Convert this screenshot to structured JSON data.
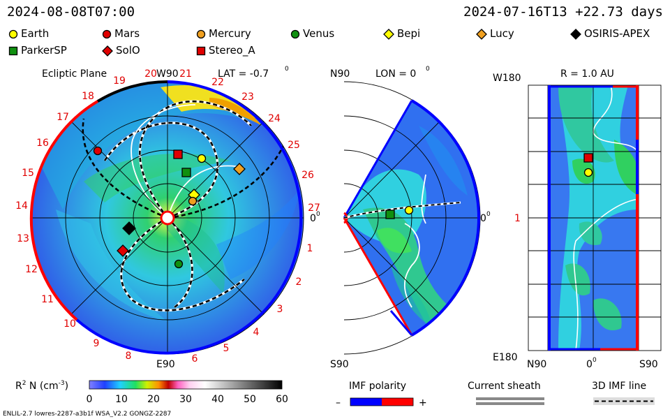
{
  "header": {
    "date": "2024-08-08T07:00",
    "run_info": "2024-07-16T13 +22.73 days"
  },
  "legend": [
    {
      "label": "Earth",
      "shape": "circle",
      "color": "#ffff00"
    },
    {
      "label": "Mars",
      "shape": "circle",
      "color": "#e00000"
    },
    {
      "label": "Mercury",
      "shape": "circle",
      "color": "#f0a020"
    },
    {
      "label": "Venus",
      "shape": "circle",
      "color": "#109010"
    },
    {
      "label": "Bepi",
      "shape": "diamond",
      "color": "#ffff00"
    },
    {
      "label": "Lucy",
      "shape": "diamond",
      "color": "#f0a020"
    },
    {
      "label": "OSIRIS-APEX",
      "shape": "diamond",
      "color": "#000000"
    },
    {
      "label": "ParkerSP",
      "shape": "square",
      "color": "#109010"
    },
    {
      "label": "SolO",
      "shape": "diamond",
      "color": "#e00000"
    },
    {
      "label": "Stereo_A",
      "shape": "square",
      "color": "#e00000"
    }
  ],
  "panels": {
    "ecliptic": {
      "title": "Ecliptic Plane",
      "top_label": "W90",
      "lat_label": "LAT = -0.7",
      "bottom_label": "E90",
      "right_label": "0",
      "deg": "0",
      "carrington_numbers": [
        "1",
        "2",
        "3",
        "4",
        "5",
        "6",
        "7",
        "8",
        "9",
        "10",
        "11",
        "12",
        "13",
        "14",
        "15",
        "16",
        "17",
        "18",
        "19",
        "20",
        "21",
        "22",
        "23",
        "24",
        "25",
        "26",
        "27"
      ]
    },
    "meridional": {
      "top_left": "N90",
      "lon_label": "LON = 0",
      "bottom_left": "S90",
      "right_label": "0",
      "deg": "0"
    },
    "radial": {
      "top_left": "W180",
      "r_label": "R = 1.0 AU",
      "left_mid": "1",
      "bottom_left": "E180",
      "bottom_n": "N90",
      "bottom_mid": "0",
      "bottom_s": "S90",
      "deg": "0"
    }
  },
  "colorbar": {
    "label": "R",
    "label_exp": "2",
    "label_rest": " N (cm",
    "label_unit_exp": "-3",
    "label_close": ")",
    "ticks": [
      "0",
      "10",
      "20",
      "30",
      "40",
      "50",
      "60"
    ]
  },
  "imf": {
    "title": "IMF polarity",
    "minus": "–",
    "plus": "+",
    "negative_color": "#0000ff",
    "positive_color": "#ff0000"
  },
  "sheath": {
    "title": "Current sheath"
  },
  "imfline": {
    "title": "3D IMF line"
  },
  "footer": {
    "left": "ENLIL-2.7 lowres-2287-a3b1f WSA_V2.2 GONGZ-2287"
  },
  "chart_data": {
    "type": "heatmap",
    "title": "Ecliptic Plane",
    "quantity": "R^2 N (cm^-3)",
    "colorbar_range": [
      0,
      60
    ],
    "colorbar_ticks": [
      0,
      10,
      20,
      30,
      40,
      50,
      60
    ],
    "bodies": [
      "Earth",
      "Mars",
      "Mercury",
      "Venus",
      "Bepi",
      "Lucy",
      "OSIRIS-APEX",
      "ParkerSP",
      "SolO",
      "Stereo_A"
    ],
    "panels": [
      "Ecliptic Plane LAT = -0.7",
      "Meridional LON = 0",
      "R = 1.0 AU"
    ]
  }
}
